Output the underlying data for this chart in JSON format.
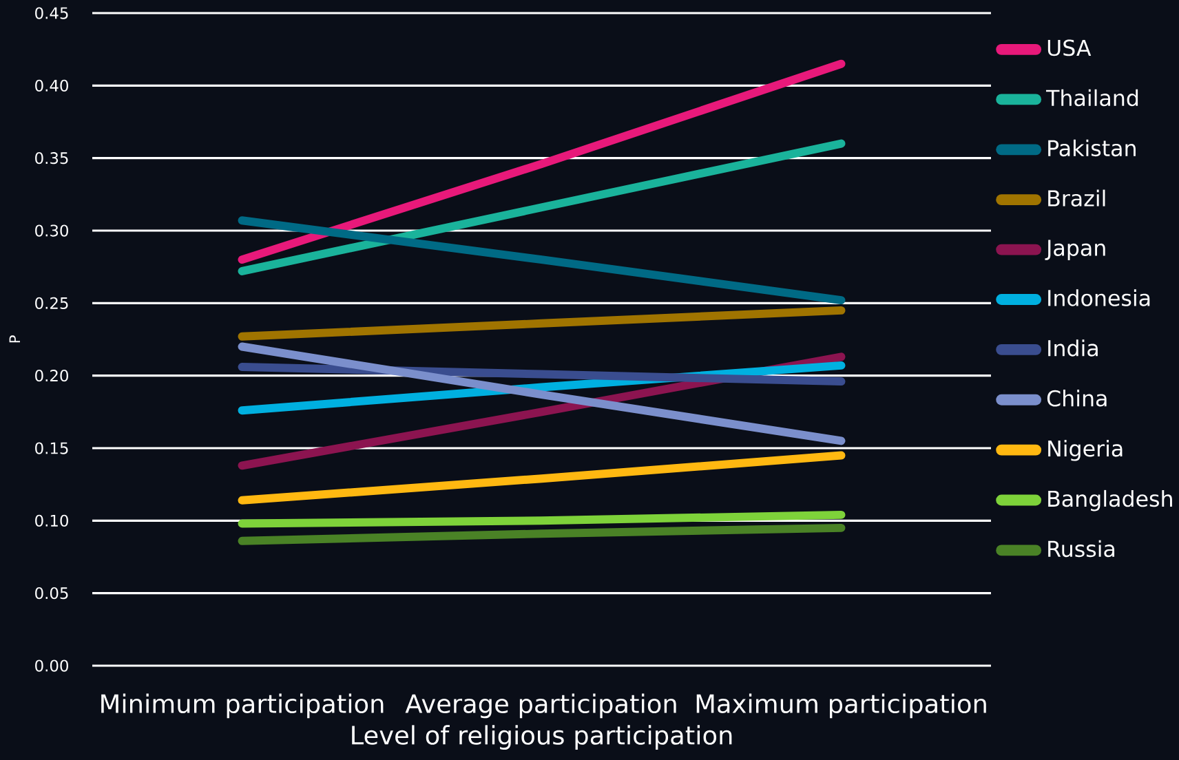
{
  "chart_data": {
    "type": "line",
    "xlabel": "Level of religious participation",
    "ylabel": "P",
    "categories": [
      "Minimum participation",
      "Average participation",
      "Maximum participation"
    ],
    "series": [
      {
        "name": "USA",
        "color": "#e8197a",
        "values": [
          0.28,
          0.346,
          0.415
        ]
      },
      {
        "name": "Thailand",
        "color": "#1ab39b",
        "values": [
          0.272,
          0.316,
          0.36
        ]
      },
      {
        "name": "Pakistan",
        "color": "#006a85",
        "values": [
          0.307,
          0.28,
          0.252
        ]
      },
      {
        "name": "Brazil",
        "color": "#a07400",
        "values": [
          0.227,
          0.236,
          0.245
        ]
      },
      {
        "name": "Japan",
        "color": "#8c1450",
        "values": [
          0.138,
          0.175,
          0.213
        ]
      },
      {
        "name": "Indonesia",
        "color": "#00b0e0",
        "values": [
          0.176,
          0.192,
          0.207
        ]
      },
      {
        "name": "India",
        "color": "#3a4d8f",
        "values": [
          0.206,
          0.201,
          0.196
        ]
      },
      {
        "name": "China",
        "color": "#7b8fcc",
        "values": [
          0.22,
          0.187,
          0.155
        ]
      },
      {
        "name": "Nigeria",
        "color": "#ffb811",
        "values": [
          0.114,
          0.129,
          0.145
        ]
      },
      {
        "name": "Bangladesh",
        "color": "#7ed23a",
        "values": [
          0.098,
          0.1,
          0.104
        ]
      },
      {
        "name": "Russia",
        "color": "#4a8226",
        "values": [
          0.086,
          0.091,
          0.095
        ]
      }
    ],
    "ylim": [
      0,
      0.45
    ],
    "yticks": [
      {
        "value": 0,
        "label": "0.00"
      },
      {
        "value": 0.05,
        "label": "0.05"
      },
      {
        "value": 0.1,
        "label": "0.10"
      },
      {
        "value": 0.15,
        "label": "0.15"
      },
      {
        "value": 0.2,
        "label": "0.20"
      },
      {
        "value": 0.25,
        "label": "0.25"
      },
      {
        "value": 0.3,
        "label": "0.30"
      },
      {
        "value": 0.35,
        "label": "0.35"
      },
      {
        "value": 0.4,
        "label": "0.40"
      },
      {
        "value": 0.45,
        "label": "0.45"
      }
    ],
    "grid": "y",
    "legend": "right",
    "marker": "none",
    "line_style": "solid"
  }
}
